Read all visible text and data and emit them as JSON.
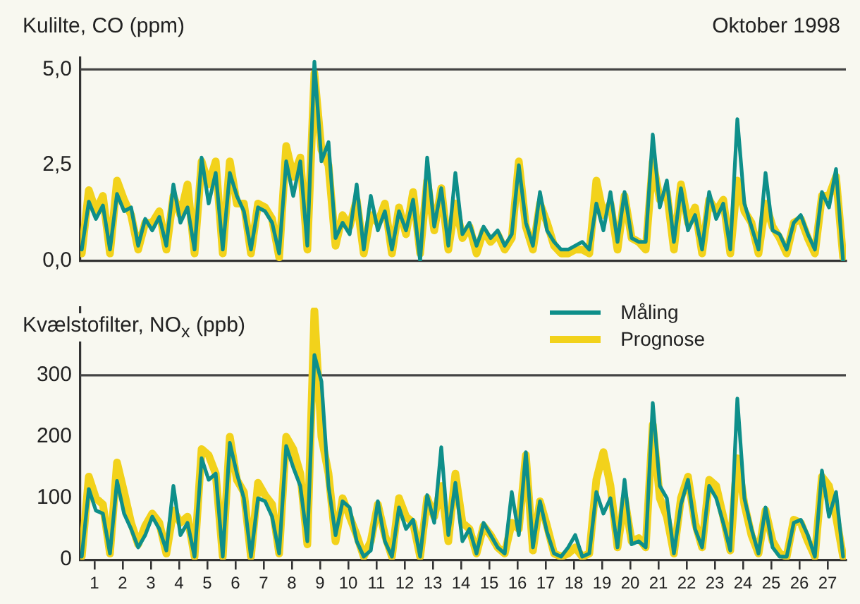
{
  "chart_data": [
    {
      "type": "line",
      "title": "Oktober 1998",
      "ylabel": "Kulilte, CO (ppm)",
      "tick_labels": "y",
      "x": [
        0.55,
        0.8,
        1.05,
        1.3,
        1.55,
        1.8,
        2.05,
        2.3,
        2.55,
        2.8,
        3.05,
        3.3,
        3.55,
        3.8,
        4.05,
        4.3,
        4.55,
        4.8,
        5.05,
        5.3,
        5.55,
        5.8,
        6.05,
        6.3,
        6.55,
        6.8,
        7.05,
        7.3,
        7.55,
        7.8,
        8.05,
        8.3,
        8.55,
        8.8,
        9.05,
        9.3,
        9.55,
        9.8,
        10.05,
        10.3,
        10.55,
        10.8,
        11.05,
        11.3,
        11.55,
        11.8,
        12.05,
        12.3,
        12.55,
        12.8,
        13.05,
        13.3,
        13.55,
        13.8,
        14.05,
        14.3,
        14.55,
        14.8,
        15.05,
        15.3,
        15.55,
        15.8,
        16.05,
        16.3,
        16.55,
        16.8,
        17.05,
        17.3,
        17.55,
        17.8,
        18.05,
        18.3,
        18.55,
        18.8,
        19.05,
        19.3,
        19.55,
        19.8,
        20.05,
        20.3,
        20.55,
        20.8,
        21.05,
        21.3,
        21.55,
        21.8,
        22.05,
        22.3,
        22.55,
        22.8,
        23.05,
        23.3,
        23.55,
        23.8,
        24.05,
        24.3,
        24.55,
        24.8,
        25.05,
        25.3,
        25.55,
        25.8,
        26.05,
        26.3,
        26.55,
        26.8,
        27.05,
        27.3,
        27.55
      ],
      "xlim": [
        0.5,
        27.65
      ],
      "xticks": [
        1,
        2,
        3,
        4,
        5,
        6,
        7,
        8,
        9,
        10,
        11,
        12,
        13,
        14,
        15,
        16,
        17,
        18,
        19,
        20,
        21,
        22,
        23,
        24,
        25,
        26,
        27
      ],
      "ylim": [
        0,
        5.3
      ],
      "yticks": [
        {
          "value": 0,
          "label": "0,0"
        },
        {
          "value": 2.5,
          "label": "2,5"
        },
        {
          "value": 5,
          "label": "5,0"
        }
      ],
      "ref_lines": [
        {
          "axis": "y",
          "value": 5,
          "color": "#444444"
        }
      ],
      "series": [
        {
          "color": "#0e8f8a",
          "values": [
            0.3,
            1.55,
            1.1,
            1.45,
            0.3,
            1.75,
            1.3,
            1.4,
            0.4,
            1.1,
            0.8,
            1.15,
            0.4,
            2.0,
            1.0,
            1.4,
            0.3,
            2.7,
            1.5,
            2.3,
            0.3,
            2.3,
            1.7,
            1.3,
            0.3,
            1.4,
            1.3,
            1.0,
            0.2,
            2.6,
            1.7,
            2.6,
            0.4,
            5.2,
            2.6,
            3.1,
            0.6,
            1.0,
            0.7,
            2.0,
            0.3,
            1.7,
            0.8,
            1.3,
            0.3,
            1.3,
            0.8,
            1.6,
            0,
            2.7,
            0.9,
            1.9,
            0.4,
            2.3,
            0.7,
            1.0,
            0.4,
            0.9,
            0.6,
            0.8,
            0.4,
            0.7,
            2.5,
            1.0,
            0.4,
            1.8,
            0.8,
            0.5,
            0.3,
            0.3,
            0.4,
            0.5,
            0.3,
            1.5,
            0.8,
            1.8,
            0.5,
            1.8,
            0.6,
            0.5,
            0.5,
            3.3,
            1.4,
            2.1,
            0.5,
            1.9,
            0.8,
            1.2,
            0.3,
            1.8,
            1.1,
            1.5,
            0.3,
            3.7,
            1.5,
            0.9,
            0.3,
            2.3,
            0.8,
            0.7,
            0.3,
            1.0,
            1.2,
            0.7,
            0.3,
            1.8,
            1.4,
            2.4,
            0
          ]
        },
        {
          "color": "#f2d21b",
          "values": [
            0.2,
            1.85,
            1.3,
            1.7,
            0.2,
            2.1,
            1.6,
            1.2,
            0.3,
            1.0,
            1.0,
            1.3,
            0.3,
            1.7,
            1.2,
            2.0,
            0.2,
            2.6,
            2.0,
            2.6,
            0.2,
            2.6,
            1.5,
            1.5,
            0.2,
            1.5,
            1.4,
            1.1,
            0.1,
            3.0,
            2.2,
            2.7,
            0.3,
            4.9,
            2.9,
            2.5,
            0.4,
            1.2,
            0.9,
            1.6,
            0.2,
            1.2,
            1.0,
            1.5,
            0.2,
            1.4,
            0.7,
            1.8,
            0.2,
            2.1,
            0.8,
            1.9,
            0.3,
            1.5,
            0.6,
            0.9,
            0.2,
            0.8,
            0.5,
            0.7,
            0.3,
            0.6,
            2.6,
            0.9,
            0.3,
            1.5,
            1.0,
            0.4,
            0.2,
            0.2,
            0.3,
            0.3,
            0.2,
            2.1,
            1.2,
            1.5,
            0.3,
            1.7,
            0.6,
            0.5,
            0.3,
            2.6,
            1.6,
            1.8,
            0.3,
            2.0,
            1.0,
            1.4,
            0.2,
            1.6,
            1.3,
            1.6,
            0.2,
            2.1,
            1.3,
            1.0,
            0.2,
            1.5,
            0.9,
            0.6,
            0.2,
            1.0,
            1.1,
            0.6,
            0.2,
            1.7,
            1.7,
            2.2,
            0.1
          ]
        }
      ]
    },
    {
      "type": "line",
      "ylabel": "Kvælstofilter, NO$_{x}$ (ppb)",
      "legend": "top right",
      "x": [
        0.55,
        0.8,
        1.05,
        1.3,
        1.55,
        1.8,
        2.05,
        2.3,
        2.55,
        2.8,
        3.05,
        3.3,
        3.55,
        3.8,
        4.05,
        4.3,
        4.55,
        4.8,
        5.05,
        5.3,
        5.55,
        5.8,
        6.05,
        6.3,
        6.55,
        6.8,
        7.05,
        7.3,
        7.55,
        7.8,
        8.05,
        8.3,
        8.55,
        8.8,
        9.05,
        9.3,
        9.55,
        9.8,
        10.05,
        10.3,
        10.55,
        10.8,
        11.05,
        11.3,
        11.55,
        11.8,
        12.05,
        12.3,
        12.55,
        12.8,
        13.05,
        13.3,
        13.55,
        13.8,
        14.05,
        14.3,
        14.55,
        14.8,
        15.05,
        15.3,
        15.55,
        15.8,
        16.05,
        16.3,
        16.55,
        16.8,
        17.05,
        17.3,
        17.55,
        17.8,
        18.05,
        18.3,
        18.55,
        18.8,
        19.05,
        19.3,
        19.55,
        19.8,
        20.05,
        20.3,
        20.55,
        20.8,
        21.05,
        21.3,
        21.55,
        21.8,
        22.05,
        22.3,
        22.55,
        22.8,
        23.05,
        23.3,
        23.55,
        23.8,
        24.05,
        24.3,
        24.55,
        24.8,
        25.05,
        25.3,
        25.55,
        25.8,
        26.05,
        26.3,
        26.55,
        26.8,
        27.05,
        27.3,
        27.55
      ],
      "xlim": [
        0.5,
        27.65
      ],
      "xticks": [
        1,
        2,
        3,
        4,
        5,
        6,
        7,
        8,
        9,
        10,
        11,
        12,
        13,
        14,
        15,
        16,
        17,
        18,
        19,
        20,
        21,
        22,
        23,
        24,
        25,
        26,
        27
      ],
      "ylim": [
        0,
        410
      ],
      "yticks": [
        0,
        100,
        200,
        300
      ],
      "ref_lines": [
        {
          "axis": "y",
          "value": 300,
          "color": "#444444"
        }
      ],
      "series": [
        {
          "name": "Måling",
          "color": "#0e8f8a",
          "values": [
            5,
            115,
            80,
            75,
            10,
            128,
            75,
            50,
            20,
            40,
            70,
            50,
            15,
            120,
            40,
            60,
            5,
            165,
            130,
            140,
            5,
            190,
            140,
            100,
            5,
            100,
            95,
            70,
            10,
            185,
            150,
            120,
            30,
            333,
            290,
            120,
            40,
            95,
            85,
            30,
            5,
            15,
            95,
            30,
            5,
            85,
            50,
            65,
            5,
            105,
            60,
            183,
            40,
            125,
            30,
            50,
            10,
            60,
            40,
            20,
            10,
            110,
            40,
            175,
            20,
            95,
            45,
            10,
            5,
            20,
            40,
            5,
            10,
            110,
            75,
            100,
            20,
            130,
            25,
            30,
            20,
            255,
            120,
            100,
            10,
            90,
            130,
            50,
            20,
            120,
            100,
            60,
            15,
            262,
            100,
            50,
            10,
            85,
            20,
            5,
            5,
            60,
            65,
            40,
            5,
            145,
            70,
            110,
            5
          ]
        },
        {
          "name": "Prognose",
          "color": "#f2d21b",
          "values": [
            5,
            135,
            100,
            90,
            10,
            158,
            110,
            60,
            25,
            55,
            75,
            60,
            10,
            80,
            60,
            70,
            5,
            180,
            170,
            140,
            5,
            200,
            130,
            110,
            5,
            125,
            105,
            90,
            10,
            200,
            180,
            140,
            25,
            405,
            200,
            140,
            30,
            100,
            70,
            40,
            5,
            30,
            90,
            40,
            5,
            100,
            70,
            60,
            5,
            100,
            70,
            120,
            30,
            140,
            60,
            50,
            10,
            55,
            40,
            20,
            10,
            60,
            50,
            170,
            15,
            95,
            55,
            10,
            5,
            10,
            20,
            5,
            10,
            130,
            175,
            120,
            20,
            100,
            30,
            35,
            20,
            220,
            100,
            70,
            10,
            100,
            135,
            60,
            20,
            130,
            120,
            70,
            15,
            165,
            90,
            40,
            10,
            80,
            30,
            10,
            5,
            65,
            60,
            30,
            5,
            135,
            120,
            70,
            5
          ]
        }
      ]
    }
  ]
}
